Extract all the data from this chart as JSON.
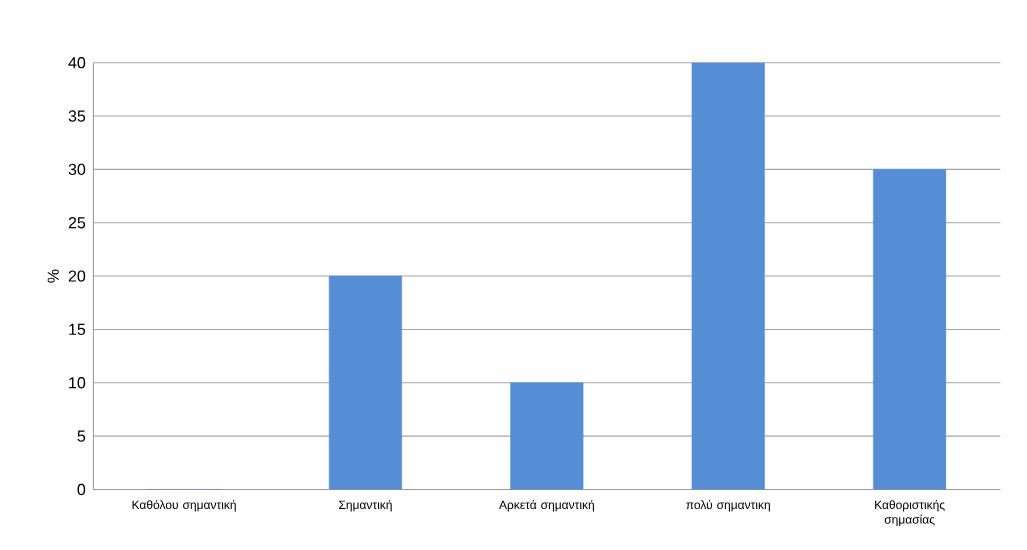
{
  "chart_data": {
    "type": "bar",
    "ylabel": "%",
    "categories": [
      "Καθόλου σημαντική",
      "Σημαντική",
      "Αρκετά σημαντική",
      "πολύ σημαντικη",
      "Καθοριστικής σημασίας"
    ],
    "values": [
      0,
      20,
      10,
      40,
      30
    ],
    "color": "#558ed5",
    "ylim": [
      0,
      40
    ],
    "yticks": [
      0,
      5,
      10,
      15,
      20,
      25,
      30,
      35,
      40
    ],
    "grid": "y"
  }
}
